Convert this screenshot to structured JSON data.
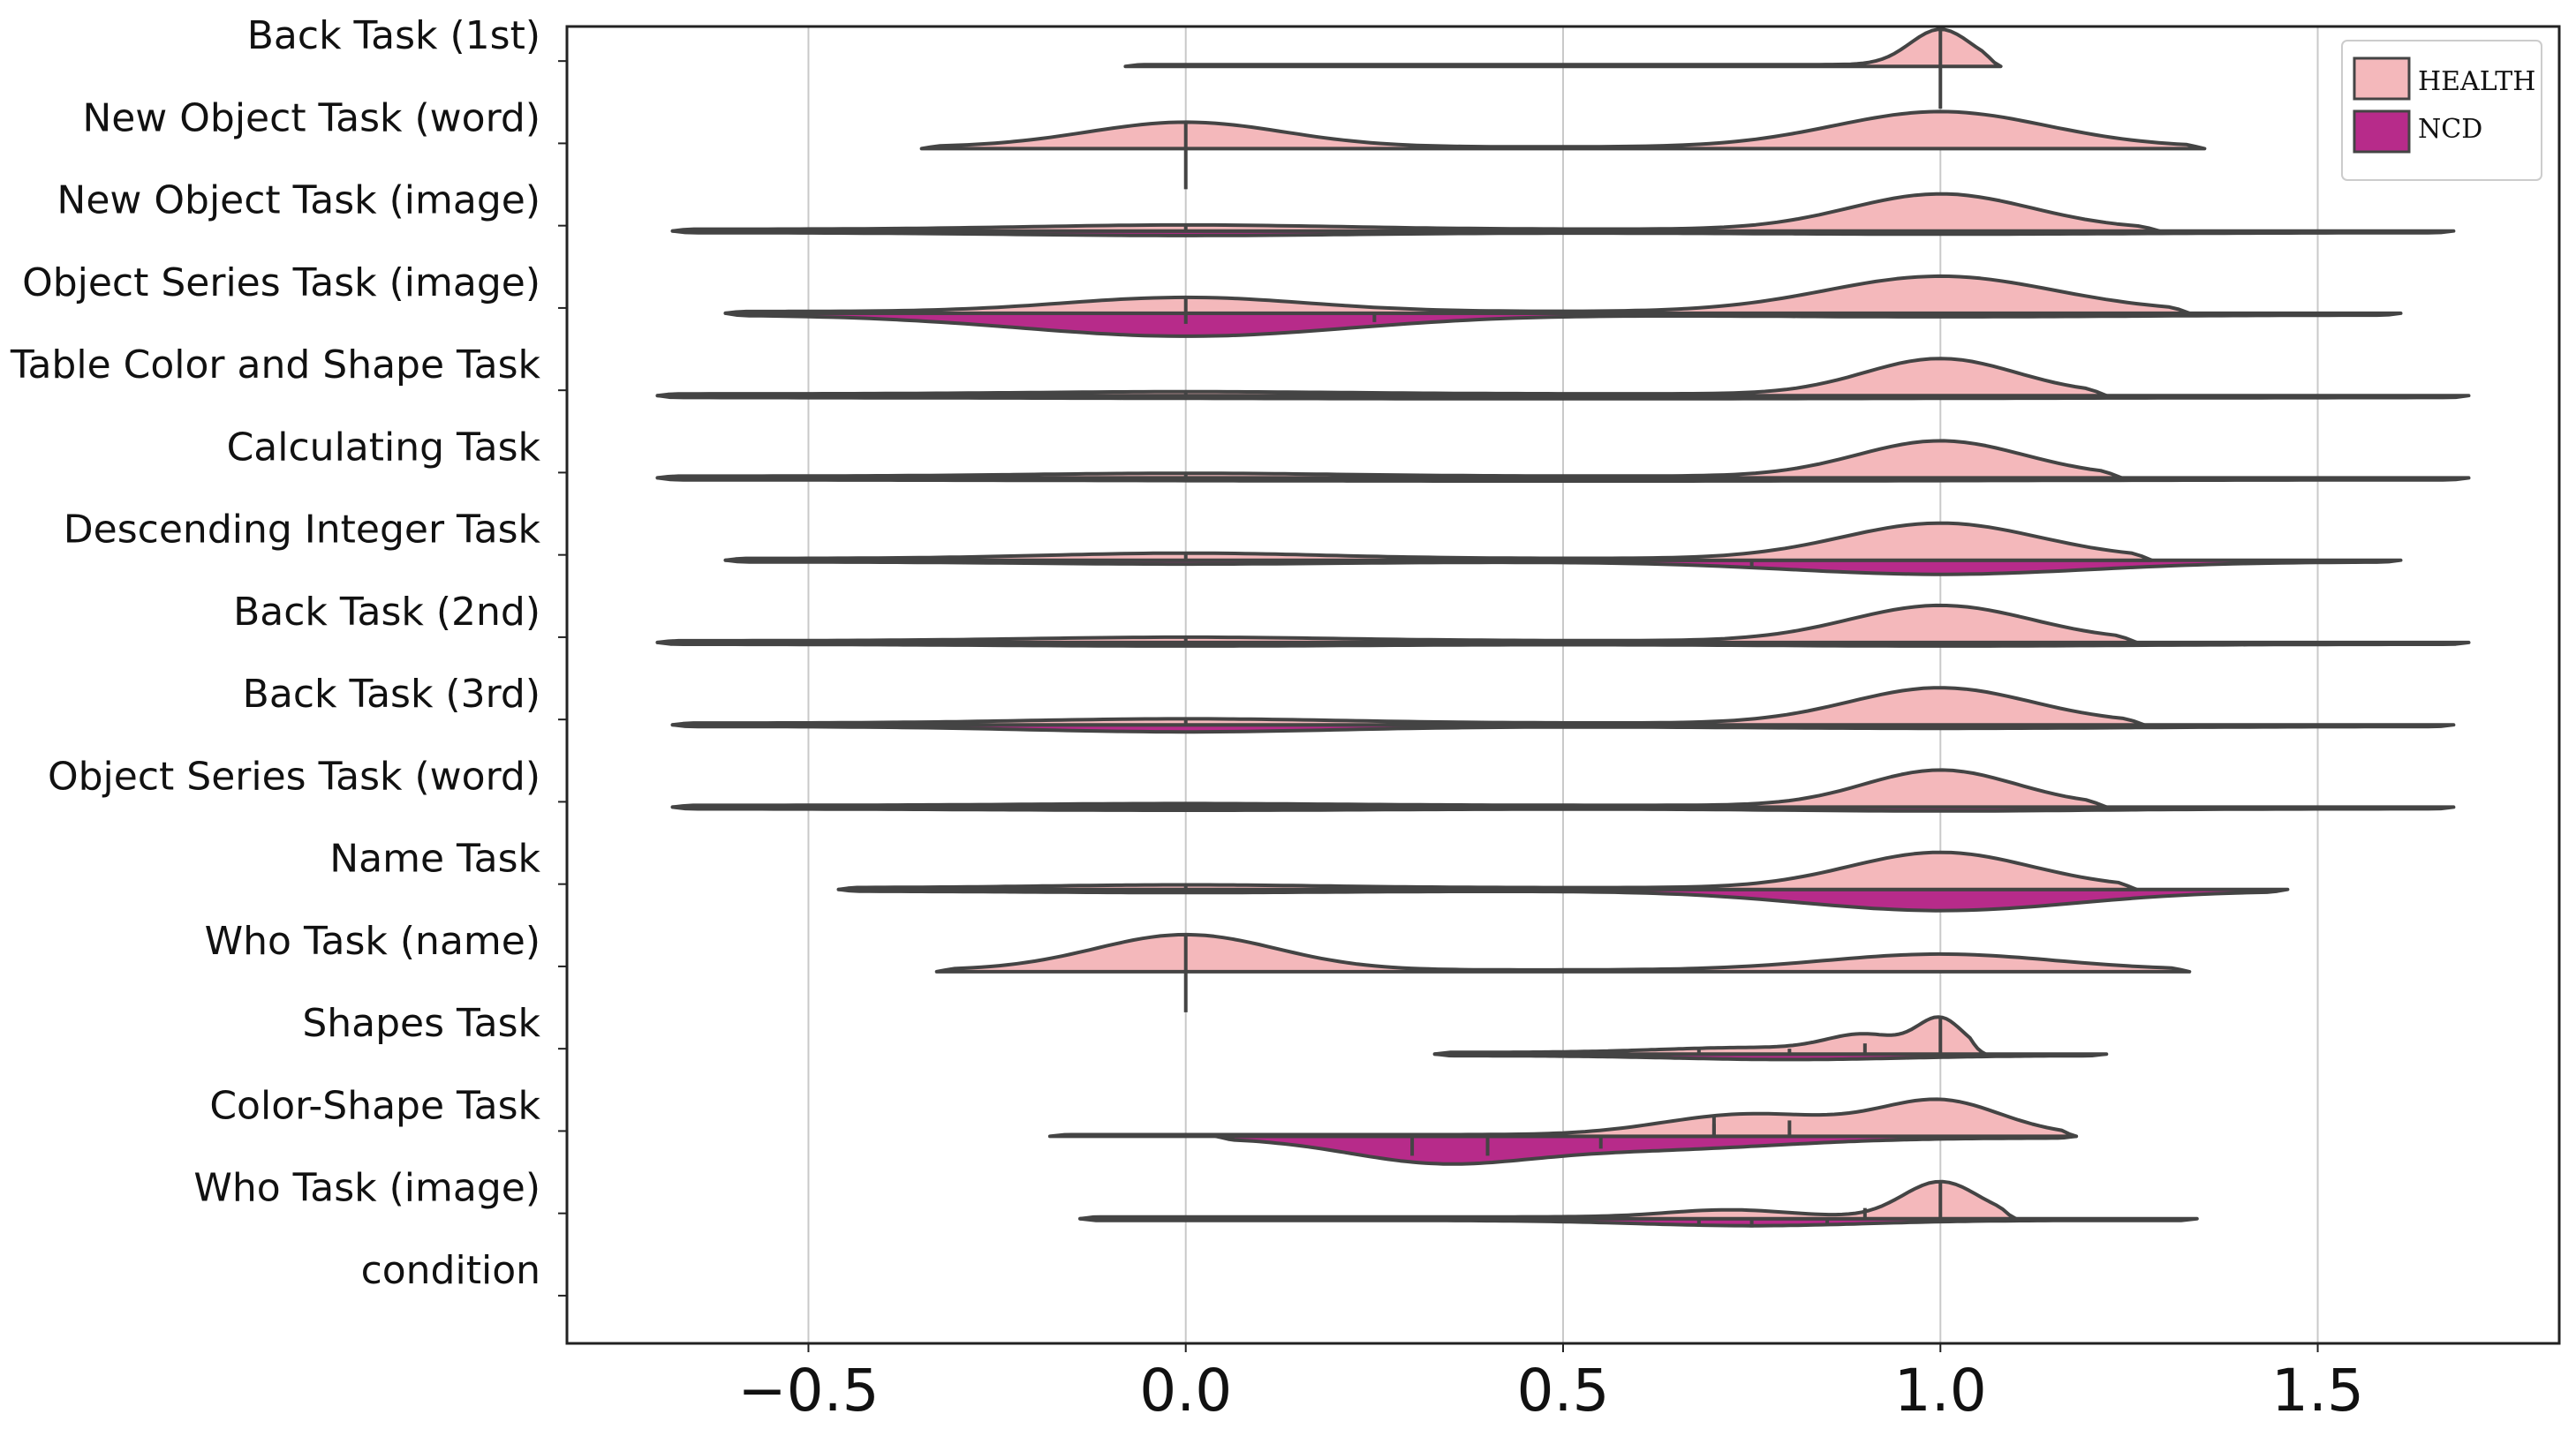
{
  "chart_data": {
    "type": "split-violin",
    "orientation": "horizontal",
    "title": "",
    "xlabel": "",
    "ylabel": "",
    "xlim": [
      -0.82,
      1.82
    ],
    "xticks": [
      -0.5,
      0.0,
      0.5,
      1.0,
      1.5
    ],
    "xtick_labels": [
      "−0.5",
      "0.0",
      "0.5",
      "1.0",
      "1.5"
    ],
    "grid": "vertical",
    "legend_position": "top-right",
    "series": [
      {
        "name": "HEALTH",
        "color": "#f4b8bb",
        "side": "upper"
      },
      {
        "name": "NCD",
        "color": "#b72b8a",
        "side": "lower"
      }
    ],
    "categories": [
      "Back Task (1st)",
      "New Object Task (word)",
      "New Object Task (image)",
      "Object Series Task (image)",
      "Table Color and Shape Task",
      "Calculating Task",
      "Descending Integer Task",
      "Back Task (2nd)",
      "Back Task (3rd)",
      "Object Series Task (word)",
      "Name Task",
      "Who Task (name)",
      "Shapes Task",
      "Color-Shape Task",
      "Who Task (image)",
      "condition"
    ],
    "violins": [
      {
        "health": {
          "range": [
            -0.08,
            1.08
          ],
          "peaks": [
            [
              1.0,
              0.04,
              1.0
            ]
          ]
        },
        "ncd": null,
        "lines": [
          {
            "x": 1.0,
            "len": 48,
            "dir": "down"
          }
        ]
      },
      {
        "health": {
          "range": [
            -0.35,
            1.35
          ],
          "peaks": [
            [
              0.0,
              0.13,
              0.7
            ],
            [
              1.0,
              0.14,
              1.0
            ]
          ]
        },
        "ncd": null,
        "lines": [
          {
            "x": 0.0,
            "len": 46,
            "dir": "down"
          }
        ]
      },
      {
        "health": {
          "range": [
            -0.68,
            1.29
          ],
          "peaks": [
            [
              0.0,
              0.2,
              0.12
            ],
            [
              1.0,
              0.12,
              1.0
            ]
          ]
        },
        "ncd": {
          "range": [
            -0.68,
            1.68
          ],
          "peaks": [
            [
              0.0,
              0.22,
              0.08
            ],
            [
              1.0,
              0.25,
              0.04
            ]
          ]
        },
        "lines": []
      },
      {
        "health": {
          "range": [
            -0.61,
            1.33
          ],
          "peaks": [
            [
              0.0,
              0.16,
              0.4
            ],
            [
              1.0,
              0.15,
              1.0
            ]
          ]
        },
        "ncd": {
          "range": [
            -0.61,
            1.61
          ],
          "peaks": [
            [
              0.0,
              0.22,
              0.6
            ],
            [
              1.0,
              0.25,
              0.05
            ]
          ]
        },
        "lines": [
          {
            "x": 0.25,
            "len": 10,
            "dir": "down"
          },
          {
            "x": 0.0,
            "len": 12,
            "dir": "down"
          }
        ]
      },
      {
        "health": {
          "range": [
            -0.7,
            1.22
          ],
          "peaks": [
            [
              0.0,
              0.2,
              0.06
            ],
            [
              1.0,
              0.1,
              1.0
            ]
          ]
        },
        "ncd": {
          "range": [
            -0.7,
            1.7
          ],
          "peaks": [
            [
              0.5,
              0.6,
              0.04
            ]
          ]
        },
        "lines": []
      },
      {
        "health": {
          "range": [
            -0.7,
            1.24
          ],
          "peaks": [
            [
              0.0,
              0.2,
              0.08
            ],
            [
              1.0,
              0.11,
              1.0
            ]
          ]
        },
        "ncd": {
          "range": [
            -0.7,
            1.7
          ],
          "peaks": [
            [
              0.5,
              0.6,
              0.04
            ]
          ]
        },
        "lines": []
      },
      {
        "health": {
          "range": [
            -0.61,
            1.28
          ],
          "peaks": [
            [
              0.0,
              0.18,
              0.15
            ],
            [
              1.0,
              0.13,
              1.0
            ]
          ]
        },
        "ncd": {
          "range": [
            -0.61,
            1.61
          ],
          "peaks": [
            [
              0.0,
              0.2,
              0.06
            ],
            [
              1.0,
              0.2,
              0.35
            ]
          ]
        },
        "lines": [
          {
            "x": 0.75,
            "len": 10,
            "dir": "down"
          }
        ]
      },
      {
        "health": {
          "range": [
            -0.7,
            1.26
          ],
          "peaks": [
            [
              0.0,
              0.2,
              0.1
            ],
            [
              1.0,
              0.12,
              1.0
            ]
          ]
        },
        "ncd": {
          "range": [
            -0.7,
            1.7
          ],
          "peaks": [
            [
              0.0,
              0.25,
              0.05
            ],
            [
              1.0,
              0.25,
              0.05
            ]
          ]
        },
        "lines": []
      },
      {
        "health": {
          "range": [
            -0.68,
            1.27
          ],
          "peaks": [
            [
              0.0,
              0.2,
              0.12
            ],
            [
              1.0,
              0.12,
              1.0
            ]
          ]
        },
        "ncd": {
          "range": [
            -0.68,
            1.68
          ],
          "peaks": [
            [
              0.0,
              0.2,
              0.15
            ],
            [
              1.0,
              0.25,
              0.05
            ]
          ]
        },
        "lines": []
      },
      {
        "health": {
          "range": [
            -0.68,
            1.22
          ],
          "peaks": [
            [
              0.0,
              0.2,
              0.05
            ],
            [
              1.0,
              0.1,
              1.0
            ]
          ]
        },
        "ncd": {
          "range": [
            -0.68,
            1.68
          ],
          "peaks": [
            [
              0.0,
              0.25,
              0.04
            ],
            [
              1.0,
              0.2,
              0.06
            ]
          ]
        },
        "lines": []
      },
      {
        "health": {
          "range": [
            -0.46,
            1.26
          ],
          "peaks": [
            [
              0.0,
              0.18,
              0.08
            ],
            [
              1.0,
              0.12,
              1.0
            ]
          ]
        },
        "ncd": {
          "range": [
            -0.46,
            1.46
          ],
          "peaks": [
            [
              0.0,
              0.2,
              0.04
            ],
            [
              1.0,
              0.18,
              0.55
            ]
          ]
        },
        "lines": []
      },
      {
        "health": {
          "range": [
            -0.33,
            1.33
          ],
          "peaks": [
            [
              0.0,
              0.12,
              1.0
            ],
            [
              1.0,
              0.15,
              0.45
            ]
          ]
        },
        "ncd": null,
        "lines": [
          {
            "x": 0.0,
            "len": 46,
            "dir": "down"
          }
        ]
      },
      {
        "health": {
          "range": [
            0.33,
            1.06
          ],
          "peaks": [
            [
              1.0,
              0.03,
              1.0
            ],
            [
              0.9,
              0.05,
              0.5
            ],
            [
              0.75,
              0.12,
              0.15
            ]
          ]
        },
        "ncd": {
          "range": [
            0.33,
            1.22
          ],
          "peaks": [
            [
              0.8,
              0.15,
              0.12
            ]
          ]
        },
        "lines": [
          {
            "x": 0.9,
            "len": 12,
            "dir": "up"
          },
          {
            "x": 0.8,
            "len": 6,
            "dir": "up"
          },
          {
            "x": 0.68,
            "len": 5,
            "dir": "up"
          }
        ]
      },
      {
        "health": {
          "range": [
            -0.18,
            1.18
          ],
          "peaks": [
            [
              0.7,
              0.1,
              0.35
            ],
            [
              0.8,
              0.1,
              0.35
            ],
            [
              1.0,
              0.08,
              1.0
            ]
          ]
        },
        "ncd": {
          "range": [
            0.04,
            1.18
          ],
          "peaks": [
            [
              0.33,
              0.12,
              0.65
            ],
            [
              0.6,
              0.18,
              0.35
            ]
          ]
        },
        "lines": [
          {
            "x": 0.7,
            "len": 14,
            "dir": "up"
          },
          {
            "x": 0.8,
            "len": 18,
            "dir": "up"
          },
          {
            "x": 0.3,
            "len": 22,
            "dir": "down"
          },
          {
            "x": 0.4,
            "len": 22,
            "dir": "down"
          },
          {
            "x": 0.55,
            "len": 14,
            "dir": "down"
          }
        ]
      },
      {
        "health": {
          "range": [
            -0.14,
            1.1
          ],
          "peaks": [
            [
              1.0,
              0.05,
              1.0
            ],
            [
              0.72,
              0.08,
              0.2
            ]
          ]
        },
        "ncd": {
          "range": [
            -0.14,
            1.34
          ],
          "peaks": [
            [
              0.75,
              0.15,
              0.15
            ]
          ]
        },
        "lines": [
          {
            "x": 0.9,
            "len": 12,
            "dir": "up"
          },
          {
            "x": 0.68,
            "len": 8,
            "dir": "down"
          },
          {
            "x": 0.85,
            "len": 8,
            "dir": "down"
          },
          {
            "x": 0.75,
            "len": 10,
            "dir": "down"
          }
        ]
      }
    ]
  }
}
